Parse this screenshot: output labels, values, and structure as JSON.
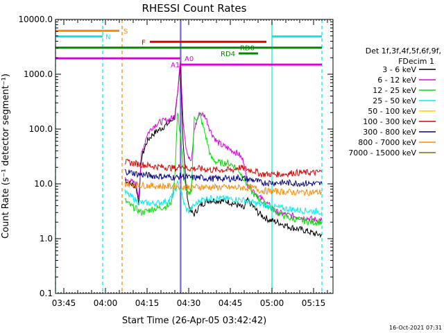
{
  "chart_data": {
    "type": "line",
    "title": "RHESSI Count Rates",
    "xlabel": "Start Time (26-Apr-05 03:42:42)",
    "ylabel": "Count Rate (s⁻¹ detector segment⁻¹)",
    "yscale": "log",
    "xlim_minutes_after_0342": [
      0,
      100
    ],
    "ylim": [
      0.1,
      10000
    ],
    "x_tick_labels": [
      "03:45",
      "04:00",
      "04:15",
      "04:30",
      "04:45",
      "05:00",
      "05:15"
    ],
    "y_tick_labels": [
      "0.1",
      "1.0",
      "10.0",
      "100.0",
      "1000.0",
      "10000.0"
    ],
    "legend": {
      "header_line1": "Det 1f,3f,4f,5f,6f,9f,",
      "header_line2": "FDecim 1",
      "placement": "right"
    },
    "series": [
      {
        "name": "3 - 6 keV",
        "color": "#000000",
        "points": [
          [
            25,
            12
          ],
          [
            27,
            10
          ],
          [
            29,
            9
          ],
          [
            30,
            4.5
          ],
          [
            31,
            30
          ],
          [
            33,
            60
          ],
          [
            35,
            80
          ],
          [
            37,
            95
          ],
          [
            39,
            110
          ],
          [
            41,
            130
          ],
          [
            42,
            150
          ],
          [
            43,
            170
          ],
          [
            44,
            400
          ],
          [
            45,
            1500
          ],
          [
            46,
            60
          ],
          [
            47,
            10
          ],
          [
            48,
            4
          ],
          [
            49,
            3
          ],
          [
            50,
            2.8
          ],
          [
            52,
            4
          ],
          [
            55,
            5
          ],
          [
            58,
            5
          ],
          [
            62,
            4.8
          ],
          [
            66,
            4
          ],
          [
            68,
            3.5
          ],
          [
            69,
            5
          ],
          [
            71,
            4
          ],
          [
            73,
            3
          ],
          [
            75,
            2.5
          ],
          [
            77,
            2.2
          ],
          [
            80,
            2
          ],
          [
            85,
            1.6
          ],
          [
            90,
            1.4
          ],
          [
            94,
            1.2
          ],
          [
            96,
            1.2
          ]
        ]
      },
      {
        "name": "6 - 12 keV",
        "color": "#dd00dd",
        "points": [
          [
            25,
            12
          ],
          [
            27,
            11
          ],
          [
            29,
            10
          ],
          [
            30,
            6
          ],
          [
            31,
            35
          ],
          [
            33,
            80
          ],
          [
            35,
            110
          ],
          [
            37,
            130
          ],
          [
            39,
            140
          ],
          [
            41,
            150
          ],
          [
            42,
            160
          ],
          [
            43,
            170
          ],
          [
            44,
            500
          ],
          [
            45,
            1800
          ],
          [
            46,
            150
          ],
          [
            47,
            50
          ],
          [
            48,
            30
          ],
          [
            49,
            25
          ],
          [
            50,
            100
          ],
          [
            52,
            200
          ],
          [
            54,
            170
          ],
          [
            56,
            90
          ],
          [
            58,
            60
          ],
          [
            60,
            50
          ],
          [
            62,
            45
          ],
          [
            64,
            40
          ],
          [
            66,
            35
          ],
          [
            68,
            25
          ],
          [
            69,
            10
          ],
          [
            71,
            8
          ],
          [
            73,
            6
          ],
          [
            75,
            5
          ],
          [
            77,
            4
          ],
          [
            80,
            3
          ],
          [
            85,
            2.6
          ],
          [
            90,
            2.4
          ],
          [
            94,
            2.2
          ],
          [
            96,
            2.2
          ]
        ]
      },
      {
        "name": "12 - 25 keV",
        "color": "#00dd00",
        "points": [
          [
            25,
            5
          ],
          [
            27,
            4
          ],
          [
            29,
            3.5
          ],
          [
            31,
            3
          ],
          [
            33,
            3.2
          ],
          [
            35,
            3.5
          ],
          [
            37,
            3.6
          ],
          [
            39,
            3.8
          ],
          [
            41,
            4
          ],
          [
            42,
            5
          ],
          [
            43,
            15
          ],
          [
            44,
            200
          ],
          [
            45,
            80
          ],
          [
            46,
            20
          ],
          [
            47,
            8
          ],
          [
            48,
            6
          ],
          [
            49,
            8
          ],
          [
            50,
            150
          ],
          [
            52,
            180
          ],
          [
            54,
            80
          ],
          [
            56,
            30
          ],
          [
            58,
            25
          ],
          [
            60,
            24
          ],
          [
            62,
            24
          ],
          [
            64,
            22
          ],
          [
            66,
            18
          ],
          [
            68,
            12
          ],
          [
            70,
            8
          ],
          [
            72,
            6
          ],
          [
            74,
            5
          ],
          [
            76,
            4
          ],
          [
            78,
            3.5
          ],
          [
            80,
            3
          ],
          [
            84,
            2.4
          ],
          [
            88,
            2.2
          ],
          [
            92,
            2
          ],
          [
            96,
            2
          ]
        ]
      },
      {
        "name": "25 - 50 keV",
        "color": "#00eeee",
        "points": [
          [
            25,
            7
          ],
          [
            27,
            6
          ],
          [
            29,
            5
          ],
          [
            31,
            4.5
          ],
          [
            33,
            4.5
          ],
          [
            35,
            4.4
          ],
          [
            37,
            4.5
          ],
          [
            39,
            4.7
          ],
          [
            41,
            5
          ],
          [
            43,
            7
          ],
          [
            44,
            10
          ],
          [
            45,
            8
          ],
          [
            46,
            5
          ],
          [
            47,
            3.5
          ],
          [
            48,
            3.2
          ],
          [
            50,
            4
          ],
          [
            52,
            5
          ],
          [
            55,
            5.5
          ],
          [
            58,
            5.5
          ],
          [
            62,
            5.3
          ],
          [
            66,
            5.2
          ],
          [
            68,
            5
          ],
          [
            70,
            4.7
          ],
          [
            73,
            4.3
          ],
          [
            76,
            4
          ],
          [
            80,
            3.7
          ],
          [
            84,
            3.5
          ],
          [
            88,
            3.3
          ],
          [
            92,
            3.2
          ],
          [
            96,
            3.1
          ]
        ]
      },
      {
        "name": "50 - 100 keV",
        "color": "#ffcc00",
        "points": []
      },
      {
        "name": "100 - 300 keV",
        "color": "#dd0000",
        "points": [
          [
            25,
            25
          ],
          [
            30,
            23
          ],
          [
            35,
            21
          ],
          [
            40,
            20
          ],
          [
            44,
            19
          ],
          [
            45,
            22
          ],
          [
            48,
            19
          ],
          [
            52,
            19
          ],
          [
            56,
            18
          ],
          [
            60,
            18
          ],
          [
            64,
            18
          ],
          [
            66,
            20
          ],
          [
            68,
            19
          ],
          [
            70,
            18
          ],
          [
            72,
            17
          ],
          [
            74,
            15
          ],
          [
            78,
            15
          ],
          [
            82,
            15
          ],
          [
            86,
            16
          ],
          [
            90,
            16
          ],
          [
            94,
            16
          ],
          [
            96,
            17
          ]
        ]
      },
      {
        "name": "300 - 800 keV",
        "color": "#000088",
        "points": [
          [
            25,
            17
          ],
          [
            30,
            15
          ],
          [
            35,
            14
          ],
          [
            40,
            13.5
          ],
          [
            44,
            13
          ],
          [
            45,
            14
          ],
          [
            48,
            13
          ],
          [
            52,
            13
          ],
          [
            56,
            12.5
          ],
          [
            60,
            12.5
          ],
          [
            64,
            12.5
          ],
          [
            66,
            13
          ],
          [
            68,
            12.5
          ],
          [
            70,
            12
          ],
          [
            72,
            11.5
          ],
          [
            74,
            10.5
          ],
          [
            78,
            10.5
          ],
          [
            82,
            10.5
          ],
          [
            86,
            10.3
          ],
          [
            90,
            10.2
          ],
          [
            94,
            10
          ],
          [
            96,
            10
          ]
        ]
      },
      {
        "name": "800 - 7000 keV",
        "color": "#ff8800",
        "points": [
          [
            25,
            10
          ],
          [
            30,
            9.5
          ],
          [
            35,
            9.2
          ],
          [
            40,
            9
          ],
          [
            44,
            9
          ],
          [
            48,
            8.8
          ],
          [
            52,
            8.8
          ],
          [
            56,
            8.7
          ],
          [
            60,
            8.6
          ],
          [
            64,
            8.5
          ],
          [
            68,
            8.5
          ],
          [
            72,
            8.3
          ],
          [
            74,
            7.5
          ],
          [
            78,
            7.3
          ],
          [
            82,
            7.2
          ],
          [
            86,
            7
          ],
          [
            90,
            7
          ],
          [
            94,
            7
          ],
          [
            96,
            7
          ]
        ]
      },
      {
        "name": "7000 - 15000 keV",
        "color": "#886600",
        "points": []
      }
    ],
    "annotation_bars": [
      {
        "label": "S",
        "color": "#ff8800",
        "x0": 0,
        "x1": 23,
        "y": 6200
      },
      {
        "label": "N",
        "color": "#00eeee",
        "x0": 0,
        "x1": 17,
        "y": 4900
      },
      {
        "label": "N",
        "color": "#00eeee",
        "x0": 78,
        "x1": 96,
        "y": 4900
      },
      {
        "label": "F",
        "color": "#dd0000",
        "x0": 34,
        "x1": 76,
        "y": 3900
      },
      {
        "label": "RD0",
        "color": "#008800",
        "x0": 0,
        "x1": 96,
        "y": 3050
      },
      {
        "label": "RD4",
        "color": "#008800",
        "x0": 66,
        "x1": 73,
        "y": 2400
      },
      {
        "label": "A0",
        "color": "#dd00dd",
        "x0": 0,
        "x1": 45,
        "y": 1950
      },
      {
        "label": "A1",
        "color": "#dd00dd",
        "x0": 45,
        "x1": 96,
        "y": 1500
      }
    ],
    "annotation_labels": [
      {
        "text": "S",
        "color": "#ff8800",
        "x": 24.5,
        "y": 6200
      },
      {
        "text": "N",
        "color": "#00eeee",
        "x": 18,
        "y": 4900
      },
      {
        "text": "F",
        "color": "#dd0000",
        "x": 31,
        "y": 3900
      },
      {
        "text": "RD0",
        "color": "#008800",
        "x": 66.5,
        "y": 3050
      },
      {
        "text": "RD4",
        "color": "#008800",
        "x": 59.5,
        "y": 2400
      },
      {
        "text": "A0",
        "color": "#dd00dd",
        "x": 46.5,
        "y": 1950
      },
      {
        "text": "A1",
        "color": "#dd00dd",
        "x": 41.5,
        "y": 1500
      }
    ],
    "vertical_lines": [
      {
        "x": 0,
        "color": "#00eeee",
        "style": "dashed"
      },
      {
        "x": 17,
        "color": "#00eeee",
        "style": "dashed"
      },
      {
        "x": 24,
        "color": "#ff8800",
        "style": "dashed"
      },
      {
        "x": 45,
        "color": "#dd00dd",
        "style": "solid"
      },
      {
        "x": 45.3,
        "color": "#00eeee",
        "style": "solid"
      },
      {
        "x": 78,
        "color": "#00eeee",
        "style": "solid"
      },
      {
        "x": 96,
        "color": "#00eeee",
        "style": "dashed"
      }
    ],
    "footer_timestamp": "16-Oct-2021 07:31"
  }
}
